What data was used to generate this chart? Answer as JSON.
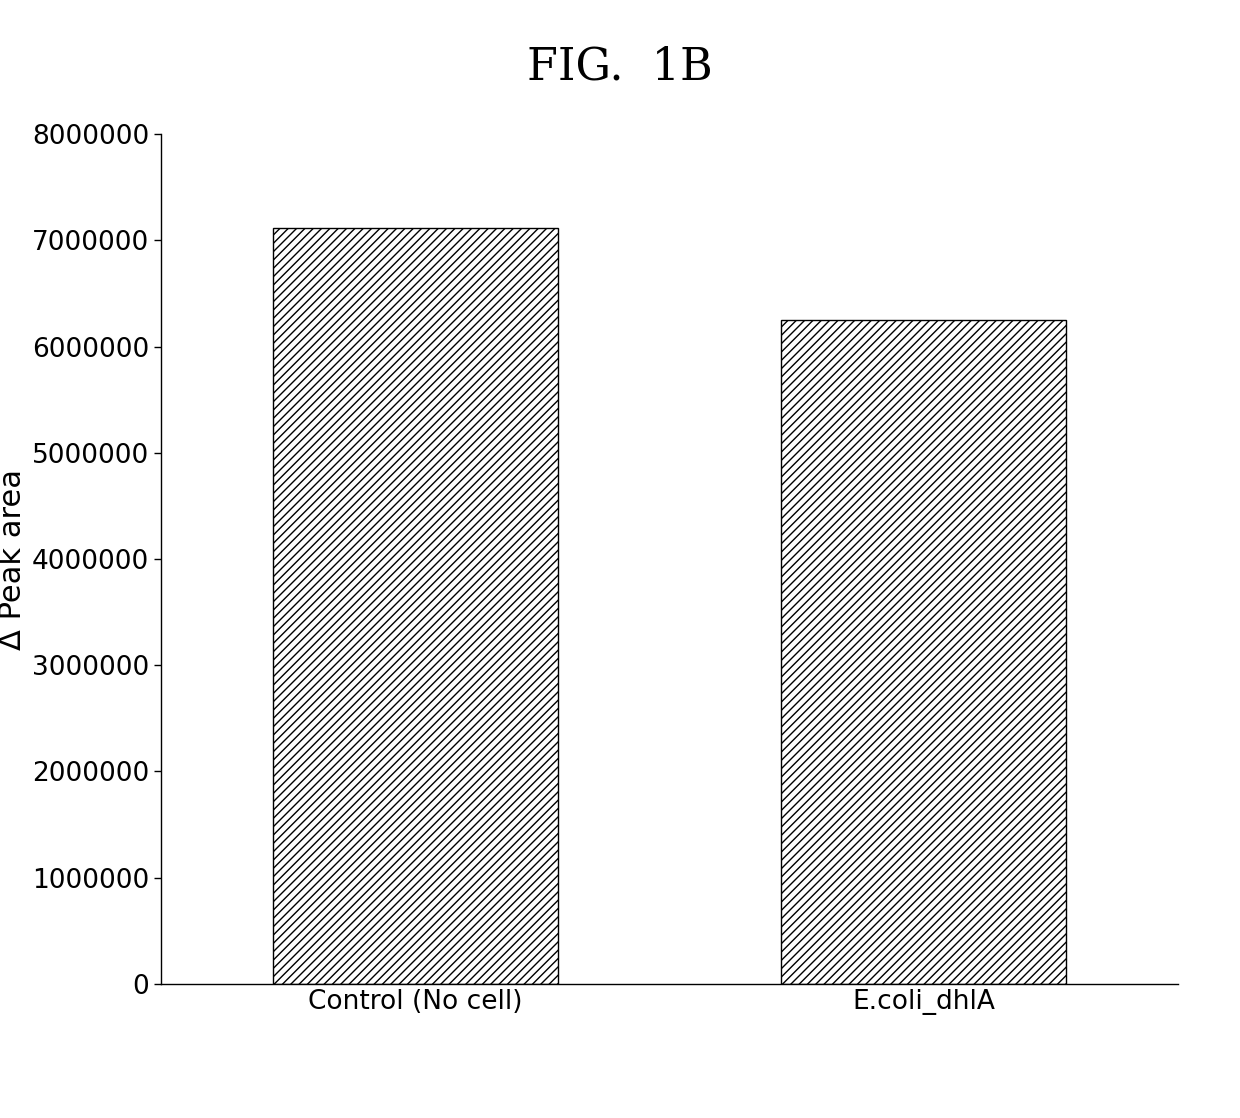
{
  "title": "FIG.  1B",
  "categories": [
    "Control (No cell)",
    "E.coli_dhlA"
  ],
  "values": [
    7120000,
    6250000
  ],
  "ylabel": "Δ Peak area",
  "ylim": [
    0,
    8000000
  ],
  "yticks": [
    0,
    1000000,
    2000000,
    3000000,
    4000000,
    5000000,
    6000000,
    7000000,
    8000000
  ],
  "bar_color": "#ffffff",
  "bar_edgecolor": "#000000",
  "hatch_pattern": "////",
  "background_color": "#ffffff",
  "title_fontsize": 32,
  "axis_label_fontsize": 22,
  "tick_fontsize": 19,
  "bar_width": 0.28,
  "x_positions": [
    0.25,
    0.75
  ],
  "xlim": [
    0.0,
    1.0
  ]
}
